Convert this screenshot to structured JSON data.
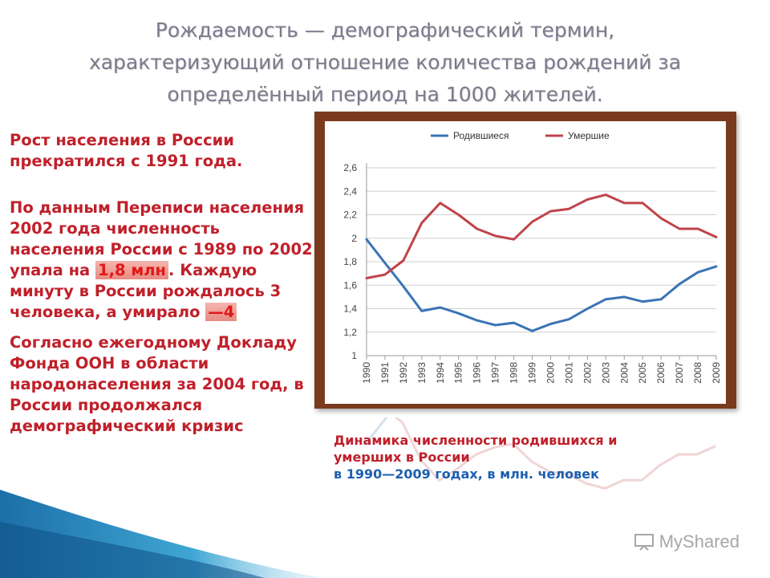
{
  "slide": {
    "title_lines": [
      "Рождаемость — демографический термин,",
      "характеризующий отношение количества рождений за",
      "определённый период на 1000 жителей."
    ],
    "paragraph1": "Рост населения в России прекратился с 1991 года.",
    "paragraph2_before": "По данным Переписи населения 2002 года численность населения России с 1989 по 2002 упала на ",
    "paragraph2_highlight1": "1,8 млн",
    "paragraph2_middle": ". Каждую минуту в России рождалось 3 человека, а умирало ",
    "paragraph2_highlight2": "—4",
    "paragraph3": "Согласно ежегодному Докладу Фонда ООН в области народонаселения за 2004 год, в России продолжался демографический кризис",
    "caption_title": "Динамика численности родившихся и умерших в России",
    "caption_subtitle": "в 1990—2009 годах, в млн. человек",
    "watermark": "MyShared"
  },
  "chart_data": {
    "type": "line",
    "x": [
      "1990",
      "1991",
      "1992",
      "1993",
      "1994",
      "1995",
      "1996",
      "1997",
      "1998",
      "1999",
      "2000",
      "2001",
      "2002",
      "2003",
      "2004",
      "2005",
      "2006",
      "2007",
      "2008",
      "2009"
    ],
    "series": [
      {
        "name": "Родившиеся",
        "color": "#3b74b5",
        "values": [
          1.99,
          1.79,
          1.59,
          1.38,
          1.41,
          1.36,
          1.3,
          1.26,
          1.28,
          1.21,
          1.27,
          1.31,
          1.4,
          1.48,
          1.5,
          1.46,
          1.48,
          1.61,
          1.71,
          1.76
        ]
      },
      {
        "name": "Умершие",
        "color": "#c0444a",
        "values": [
          1.66,
          1.69,
          1.81,
          2.13,
          2.3,
          2.2,
          2.08,
          2.02,
          1.99,
          2.14,
          2.23,
          2.25,
          2.33,
          2.37,
          2.3,
          2.3,
          2.17,
          2.08,
          2.08,
          2.01
        ]
      }
    ],
    "yticks": [
      "2,6",
      "2,4",
      "2,2",
      "2",
      "1,8",
      "1,6",
      "1,4",
      "1,2",
      "1"
    ],
    "ylim": [
      1,
      2.6
    ],
    "grid": true,
    "legend": "top"
  }
}
